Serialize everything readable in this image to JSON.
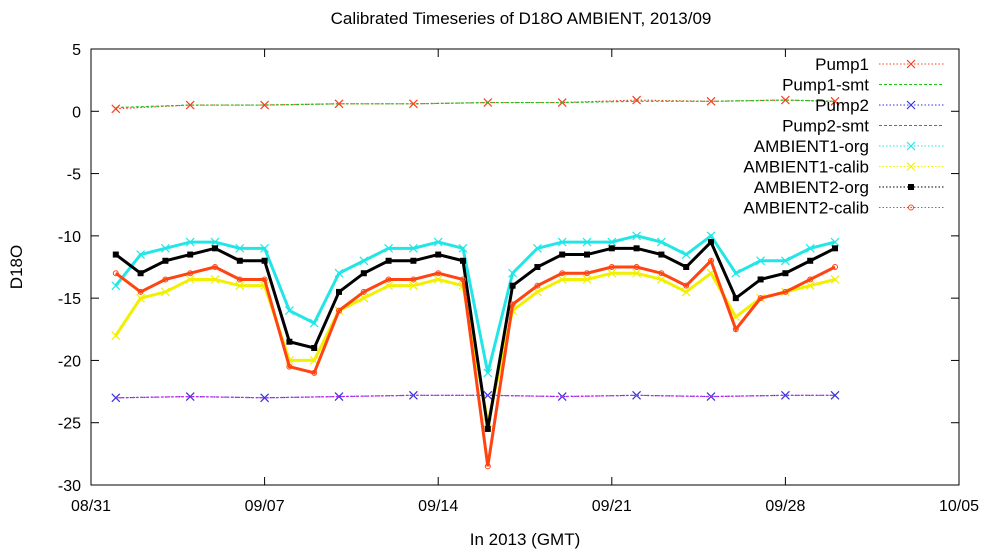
{
  "chart_data": {
    "type": "line",
    "title": "Calibrated Timeseries of D18O AMBIENT, 2013/09",
    "xlabel": "In 2013 (GMT)",
    "ylabel": "D18O",
    "xlim": [
      "2013-08-31",
      "2013-10-05"
    ],
    "ylim": [
      -30,
      5
    ],
    "x_ticks": [
      "08/31",
      "09/07",
      "09/14",
      "09/21",
      "09/28",
      "10/05"
    ],
    "y_ticks": [
      "5",
      "0",
      "-5",
      "-10",
      "-15",
      "-20",
      "-25",
      "-30"
    ],
    "legend_position": "top-right",
    "grid": false,
    "series": [
      {
        "name": "Pump1",
        "color": "#ff3b1f",
        "marker": "x",
        "x": [
          "2013-09-01",
          "2013-09-04",
          "2013-09-07",
          "2013-09-10",
          "2013-09-13",
          "2013-09-16",
          "2013-09-19",
          "2013-09-22",
          "2013-09-25",
          "2013-09-28",
          "2013-09-30"
        ],
        "y": [
          0.2,
          0.5,
          0.5,
          0.6,
          0.6,
          0.7,
          0.7,
          0.9,
          0.8,
          0.9,
          0.8
        ]
      },
      {
        "name": "Pump1-smt",
        "color": "#1fc31f",
        "marker": "line",
        "x": [
          "2013-09-01",
          "2013-09-04",
          "2013-09-07",
          "2013-09-10",
          "2013-09-13",
          "2013-09-16",
          "2013-09-19",
          "2013-09-22",
          "2013-09-25",
          "2013-09-28",
          "2013-09-30"
        ],
        "y": [
          0.3,
          0.5,
          0.5,
          0.6,
          0.6,
          0.7,
          0.7,
          0.8,
          0.8,
          0.9,
          0.8
        ]
      },
      {
        "name": "Pump2",
        "color": "#3333dd",
        "marker": "x",
        "x": [
          "2013-09-01",
          "2013-09-04",
          "2013-09-07",
          "2013-09-10",
          "2013-09-13",
          "2013-09-16",
          "2013-09-19",
          "2013-09-22",
          "2013-09-25",
          "2013-09-28",
          "2013-09-30"
        ],
        "y": [
          -23.0,
          -22.9,
          -23.0,
          -22.9,
          -22.8,
          -22.8,
          -22.9,
          -22.8,
          -22.9,
          -22.8,
          -22.8
        ]
      },
      {
        "name": "Pump2-smt",
        "color": "#cc22ee",
        "marker": "line",
        "x": [
          "2013-09-01",
          "2013-09-04",
          "2013-09-07",
          "2013-09-10",
          "2013-09-13",
          "2013-09-16",
          "2013-09-19",
          "2013-09-22",
          "2013-09-25",
          "2013-09-28",
          "2013-09-30"
        ],
        "y": [
          -23.0,
          -22.9,
          -23.0,
          -22.9,
          -22.8,
          -22.8,
          -22.9,
          -22.8,
          -22.9,
          -22.8,
          -22.8
        ]
      },
      {
        "name": "AMBIENT1-org",
        "color": "#22e6e6",
        "marker": "x",
        "x": [
          "2013-09-01",
          "2013-09-02",
          "2013-09-03",
          "2013-09-04",
          "2013-09-05",
          "2013-09-06",
          "2013-09-07",
          "2013-09-08",
          "2013-09-09",
          "2013-09-10",
          "2013-09-11",
          "2013-09-12",
          "2013-09-13",
          "2013-09-14",
          "2013-09-15",
          "2013-09-16",
          "2013-09-17",
          "2013-09-18",
          "2013-09-19",
          "2013-09-20",
          "2013-09-21",
          "2013-09-22",
          "2013-09-23",
          "2013-09-24",
          "2013-09-25",
          "2013-09-26",
          "2013-09-27",
          "2013-09-28",
          "2013-09-29",
          "2013-09-30"
        ],
        "y": [
          -14.0,
          -11.5,
          -11.0,
          -10.5,
          -10.5,
          -11.0,
          -11.0,
          -16.0,
          -17.0,
          -13.0,
          -12.0,
          -11.0,
          -11.0,
          -10.5,
          -11.0,
          -21.0,
          -13.0,
          -11.0,
          -10.5,
          -10.5,
          -10.5,
          -10.0,
          -10.5,
          -11.5,
          -10.0,
          -13.0,
          -12.0,
          -12.0,
          -11.0,
          -10.5
        ]
      },
      {
        "name": "AMBIENT1-calib",
        "color": "#f0f000",
        "marker": "x",
        "x": [
          "2013-09-01",
          "2013-09-02",
          "2013-09-03",
          "2013-09-04",
          "2013-09-05",
          "2013-09-06",
          "2013-09-07",
          "2013-09-08",
          "2013-09-09",
          "2013-09-10",
          "2013-09-11",
          "2013-09-12",
          "2013-09-13",
          "2013-09-14",
          "2013-09-15",
          "2013-09-16",
          "2013-09-17",
          "2013-09-18",
          "2013-09-19",
          "2013-09-20",
          "2013-09-21",
          "2013-09-22",
          "2013-09-23",
          "2013-09-24",
          "2013-09-25",
          "2013-09-26",
          "2013-09-27",
          "2013-09-28",
          "2013-09-29",
          "2013-09-30"
        ],
        "y": [
          -18.0,
          -15.0,
          -14.5,
          -13.5,
          -13.5,
          -14.0,
          -14.0,
          -20.0,
          -20.0,
          -16.0,
          -15.0,
          -14.0,
          -14.0,
          -13.5,
          -14.0,
          -25.0,
          -16.0,
          -14.5,
          -13.5,
          -13.5,
          -13.0,
          -13.0,
          -13.5,
          -14.5,
          -13.0,
          -16.5,
          -15.0,
          -14.5,
          -14.0,
          -13.5
        ]
      },
      {
        "name": "AMBIENT2-org",
        "color": "#000000",
        "marker": "square",
        "x": [
          "2013-09-01",
          "2013-09-02",
          "2013-09-03",
          "2013-09-04",
          "2013-09-05",
          "2013-09-06",
          "2013-09-07",
          "2013-09-08",
          "2013-09-09",
          "2013-09-10",
          "2013-09-11",
          "2013-09-12",
          "2013-09-13",
          "2013-09-14",
          "2013-09-15",
          "2013-09-16",
          "2013-09-17",
          "2013-09-18",
          "2013-09-19",
          "2013-09-20",
          "2013-09-21",
          "2013-09-22",
          "2013-09-23",
          "2013-09-24",
          "2013-09-25",
          "2013-09-26",
          "2013-09-27",
          "2013-09-28",
          "2013-09-29",
          "2013-09-30"
        ],
        "y": [
          -11.5,
          -13.0,
          -12.0,
          -11.5,
          -11.0,
          -12.0,
          -12.0,
          -18.5,
          -19.0,
          -14.5,
          -13.0,
          -12.0,
          -12.0,
          -11.5,
          -12.0,
          -25.5,
          -14.0,
          -12.5,
          -11.5,
          -11.5,
          -11.0,
          -11.0,
          -11.5,
          -12.5,
          -10.5,
          -15.0,
          -13.5,
          -13.0,
          -12.0,
          -11.0
        ]
      },
      {
        "name": "AMBIENT2-calib",
        "color": "#ff4411",
        "marker": "circle",
        "x": [
          "2013-09-01",
          "2013-09-02",
          "2013-09-03",
          "2013-09-04",
          "2013-09-05",
          "2013-09-06",
          "2013-09-07",
          "2013-09-08",
          "2013-09-09",
          "2013-09-10",
          "2013-09-11",
          "2013-09-12",
          "2013-09-13",
          "2013-09-14",
          "2013-09-15",
          "2013-09-16",
          "2013-09-17",
          "2013-09-18",
          "2013-09-19",
          "2013-09-20",
          "2013-09-21",
          "2013-09-22",
          "2013-09-23",
          "2013-09-24",
          "2013-09-25",
          "2013-09-26",
          "2013-09-27",
          "2013-09-28",
          "2013-09-29",
          "2013-09-30"
        ],
        "y": [
          -13.0,
          -14.5,
          -13.5,
          -13.0,
          -12.5,
          -13.5,
          -13.5,
          -20.5,
          -21.0,
          -16.0,
          -14.5,
          -13.5,
          -13.5,
          -13.0,
          -13.5,
          -28.5,
          -15.5,
          -14.0,
          -13.0,
          -13.0,
          -12.5,
          -12.5,
          -13.0,
          -14.0,
          -12.0,
          -17.5,
          -15.0,
          -14.5,
          -13.5,
          -12.5
        ]
      }
    ]
  }
}
